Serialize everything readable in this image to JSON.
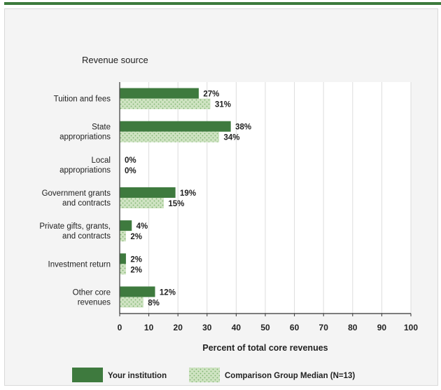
{
  "colors": {
    "top_bar": "#3c7a3c",
    "your_institution": "#3e7a3e",
    "comparison_fill": "#cfe3c2",
    "comparison_stripe": "#7db36e",
    "grid": "#dddddd",
    "axis": "#333333"
  },
  "chart_data": {
    "type": "bar",
    "orientation": "horizontal",
    "title": "Revenue source",
    "xlabel": "Percent of total core revenues",
    "xlim": [
      0,
      100
    ],
    "xticks": [
      0,
      10,
      20,
      30,
      40,
      50,
      60,
      70,
      80,
      90,
      100
    ],
    "categories": [
      [
        "Tuition and fees"
      ],
      [
        "State",
        "appropriations"
      ],
      [
        "Local",
        "appropriations"
      ],
      [
        "Government grants",
        "and contracts"
      ],
      [
        "Private gifts, grants,",
        "and contracts"
      ],
      [
        "Investment return"
      ],
      [
        "Other core",
        "revenues"
      ]
    ],
    "series": [
      {
        "name": "Your institution",
        "style": "solid",
        "values": [
          27,
          38,
          0,
          19,
          4,
          2,
          12
        ]
      },
      {
        "name": "Comparison Group Median (N=13)",
        "style": "hatched",
        "values": [
          31,
          34,
          0,
          15,
          2,
          2,
          8
        ]
      }
    ],
    "value_suffix": "%",
    "grid": true,
    "legend_position": "bottom"
  }
}
